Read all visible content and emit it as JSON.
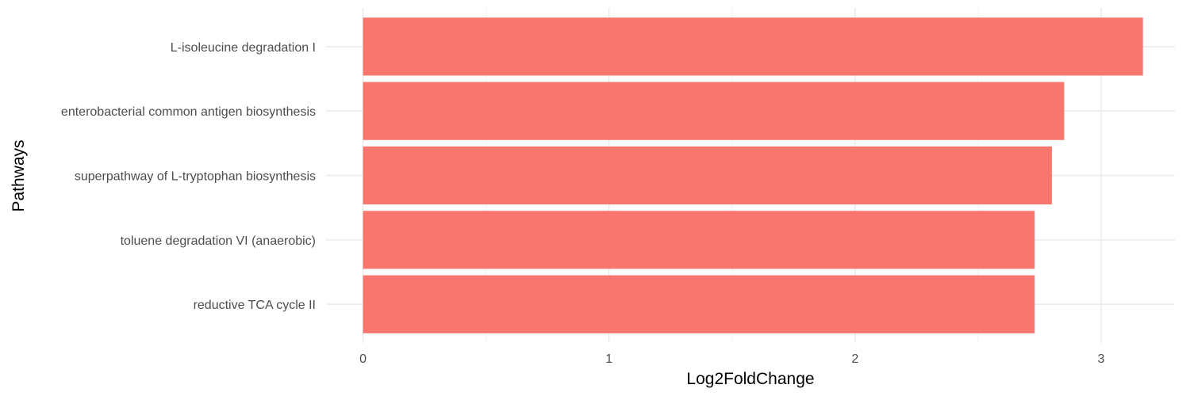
{
  "chart_data": {
    "type": "bar",
    "orientation": "horizontal",
    "categories": [
      "L-isoleucine degradation I",
      "enterobacterial common antigen biosynthesis",
      "superpathway of L-tryptophan biosynthesis",
      "toluene degradation VI (anaerobic)",
      "reductive TCA cycle II"
    ],
    "values": [
      3.17,
      2.85,
      2.8,
      2.73,
      2.73
    ],
    "xlabel": "Log2FoldChange",
    "ylabel": "Pathways",
    "xlim": [
      -0.15,
      3.3
    ],
    "xticks": [
      "0",
      "1",
      "2",
      "3"
    ],
    "grid": true,
    "legend": "none",
    "colors": {
      "bar": "#F8766D"
    }
  }
}
